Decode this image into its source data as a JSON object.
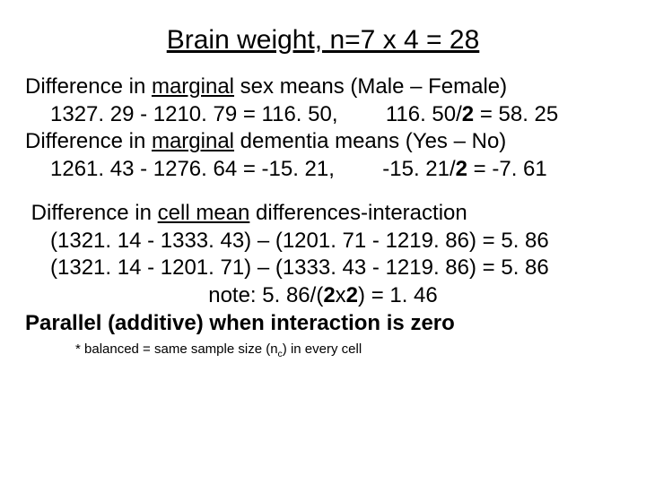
{
  "title": "Brain weight, n=7 x 4 = 28",
  "sex": {
    "label_pre": "Difference in ",
    "label_u": "marginal",
    "label_post": " sex means (Male – Female)",
    "calc_a": "1327. 29 - 1210. 79 = 116. 50,",
    "calc_b_pre": "116. 50/",
    "calc_b_bold": "2",
    "calc_b_post": " = 58. 25"
  },
  "dem": {
    "label_pre": "Difference in ",
    "label_u": "marginal",
    "label_post": " dementia means (Yes – No)",
    "calc_a": "1261. 43 - 1276. 64 = -15. 21,",
    "calc_b_pre": "-15. 21/",
    "calc_b_bold": "2",
    "calc_b_post": " = -7. 61"
  },
  "inter": {
    "label_pre": "Difference in ",
    "label_u": "cell mean",
    "label_post": " differences-interaction",
    "row1": "(1321. 14 - 1333. 43) – (1201. 71 - 1219. 86) = 5. 86",
    "row2": "(1321. 14 - 1201. 71) – (1333. 43 - 1219. 86) = 5. 86",
    "note_pre": "note:   5. 86/(",
    "note_bold": "2",
    "note_mid": "x",
    "note_bold2": "2",
    "note_post": ") = 1. 46"
  },
  "conclusion": "Parallel (additive) when interaction is zero",
  "footnote_pre": "* balanced = same sample size (n",
  "footnote_sub": "c",
  "footnote_post": ") in every cell"
}
